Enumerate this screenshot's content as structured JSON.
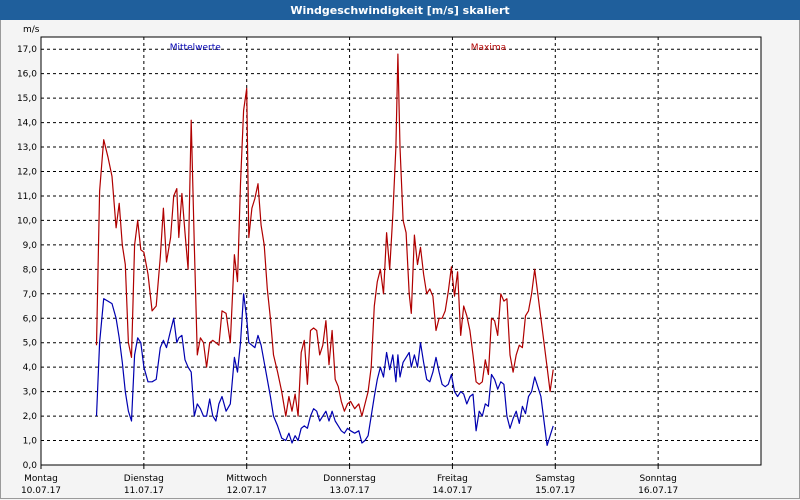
{
  "window": {
    "title": "Windgeschwindigkeit [m/s] skaliert"
  },
  "chart_data": {
    "type": "line",
    "ylabel": "m/s",
    "ylim": [
      0,
      17.5
    ],
    "yticks": [
      "0,0",
      "1,0",
      "2,0",
      "3,0",
      "4,0",
      "5,0",
      "6,0",
      "7,0",
      "8,0",
      "9,0",
      "10,0",
      "11,0",
      "12,0",
      "13,0",
      "14,0",
      "15,0",
      "16,0",
      "17,0"
    ],
    "xlim": [
      0,
      7
    ],
    "x_day_labels": [
      {
        "day": "Montag",
        "date": "10.07.17"
      },
      {
        "day": "Dienstag",
        "date": "11.07.17"
      },
      {
        "day": "Mittwoch",
        "date": "12.07.17"
      },
      {
        "day": "Donnerstag",
        "date": "13.07.17"
      },
      {
        "day": "Freitag",
        "date": "14.07.17"
      },
      {
        "day": "Samstag",
        "date": "15.07.17"
      },
      {
        "day": "Sonntag",
        "date": "16.07.17"
      }
    ],
    "grid": true,
    "series": [
      {
        "name": "Maxima",
        "color": "#b00000",
        "points": [
          [
            0.54,
            4.9
          ],
          [
            0.57,
            11.2
          ],
          [
            0.61,
            13.3
          ],
          [
            0.65,
            12.6
          ],
          [
            0.69,
            11.8
          ],
          [
            0.73,
            9.7
          ],
          [
            0.76,
            10.7
          ],
          [
            0.79,
            9.0
          ],
          [
            0.82,
            8.2
          ],
          [
            0.85,
            5.0
          ],
          [
            0.88,
            4.4
          ],
          [
            0.91,
            9.0
          ],
          [
            0.94,
            10.0
          ],
          [
            0.97,
            8.8
          ],
          [
            1.0,
            8.7
          ],
          [
            1.04,
            7.8
          ],
          [
            1.08,
            6.3
          ],
          [
            1.12,
            6.5
          ],
          [
            1.16,
            8.5
          ],
          [
            1.19,
            10.5
          ],
          [
            1.22,
            8.3
          ],
          [
            1.26,
            9.3
          ],
          [
            1.29,
            11.0
          ],
          [
            1.32,
            11.3
          ],
          [
            1.34,
            9.3
          ],
          [
            1.37,
            11.1
          ],
          [
            1.4,
            9.5
          ],
          [
            1.43,
            8.0
          ],
          [
            1.46,
            14.1
          ],
          [
            1.49,
            9.0
          ],
          [
            1.52,
            4.5
          ],
          [
            1.55,
            5.2
          ],
          [
            1.58,
            5.0
          ],
          [
            1.61,
            4.0
          ],
          [
            1.64,
            5.0
          ],
          [
            1.67,
            5.1
          ],
          [
            1.7,
            5.0
          ],
          [
            1.73,
            4.9
          ],
          [
            1.76,
            6.3
          ],
          [
            1.8,
            6.2
          ],
          [
            1.84,
            5.0
          ],
          [
            1.88,
            8.6
          ],
          [
            1.91,
            7.5
          ],
          [
            1.94,
            11.5
          ],
          [
            1.97,
            14.5
          ],
          [
            2.0,
            15.4
          ],
          [
            2.02,
            9.3
          ],
          [
            2.05,
            10.5
          ],
          [
            2.08,
            10.9
          ],
          [
            2.11,
            11.5
          ],
          [
            2.14,
            9.8
          ],
          [
            2.17,
            9.0
          ],
          [
            2.2,
            7.2
          ],
          [
            2.23,
            6.0
          ],
          [
            2.26,
            4.5
          ],
          [
            2.3,
            3.8
          ],
          [
            2.34,
            3.0
          ],
          [
            2.38,
            2.0
          ],
          [
            2.41,
            2.8
          ],
          [
            2.44,
            2.2
          ],
          [
            2.47,
            2.9
          ],
          [
            2.5,
            2.0
          ],
          [
            2.53,
            4.6
          ],
          [
            2.56,
            5.1
          ],
          [
            2.59,
            3.3
          ],
          [
            2.62,
            5.5
          ],
          [
            2.65,
            5.6
          ],
          [
            2.68,
            5.5
          ],
          [
            2.71,
            4.5
          ],
          [
            2.74,
            4.9
          ],
          [
            2.77,
            5.9
          ],
          [
            2.8,
            4.1
          ],
          [
            2.83,
            5.5
          ],
          [
            2.86,
            3.5
          ],
          [
            2.89,
            3.2
          ],
          [
            2.92,
            2.6
          ],
          [
            2.95,
            2.2
          ],
          [
            2.98,
            2.5
          ],
          [
            3.01,
            2.6
          ],
          [
            3.05,
            2.3
          ],
          [
            3.09,
            2.5
          ],
          [
            3.12,
            2.0
          ],
          [
            3.15,
            2.5
          ],
          [
            3.18,
            3.0
          ],
          [
            3.21,
            4.0
          ],
          [
            3.24,
            6.5
          ],
          [
            3.27,
            7.5
          ],
          [
            3.3,
            8.0
          ],
          [
            3.33,
            7.0
          ],
          [
            3.36,
            9.5
          ],
          [
            3.39,
            8.0
          ],
          [
            3.42,
            10.2
          ],
          [
            3.45,
            13.0
          ],
          [
            3.47,
            16.8
          ],
          [
            3.49,
            13.0
          ],
          [
            3.52,
            10.0
          ],
          [
            3.55,
            9.5
          ],
          [
            3.58,
            7.0
          ],
          [
            3.6,
            6.2
          ],
          [
            3.63,
            9.4
          ],
          [
            3.66,
            8.2
          ],
          [
            3.69,
            8.9
          ],
          [
            3.72,
            7.8
          ],
          [
            3.75,
            7.0
          ],
          [
            3.78,
            7.2
          ],
          [
            3.81,
            6.9
          ],
          [
            3.84,
            5.5
          ],
          [
            3.87,
            6.0
          ],
          [
            3.9,
            6.0
          ],
          [
            3.93,
            6.3
          ],
          [
            3.96,
            7.1
          ],
          [
            3.99,
            8.1
          ],
          [
            4.02,
            6.9
          ],
          [
            4.05,
            7.9
          ],
          [
            4.08,
            5.3
          ],
          [
            4.11,
            6.5
          ],
          [
            4.14,
            6.1
          ],
          [
            4.17,
            5.5
          ],
          [
            4.2,
            4.5
          ],
          [
            4.23,
            3.4
          ],
          [
            4.26,
            3.3
          ],
          [
            4.29,
            3.4
          ],
          [
            4.32,
            4.3
          ],
          [
            4.35,
            3.7
          ],
          [
            4.38,
            6.0
          ],
          [
            4.41,
            5.9
          ],
          [
            4.44,
            5.3
          ],
          [
            4.47,
            7.0
          ],
          [
            4.5,
            6.7
          ],
          [
            4.53,
            6.8
          ],
          [
            4.56,
            4.5
          ],
          [
            4.59,
            3.8
          ],
          [
            4.62,
            4.5
          ],
          [
            4.65,
            4.9
          ],
          [
            4.68,
            4.8
          ],
          [
            4.71,
            6.1
          ],
          [
            4.74,
            6.3
          ],
          [
            4.77,
            7.0
          ],
          [
            4.8,
            8.0
          ],
          [
            4.83,
            7.0
          ],
          [
            4.86,
            6.0
          ],
          [
            4.89,
            5.0
          ],
          [
            4.92,
            4.0
          ],
          [
            4.95,
            3.0
          ],
          [
            4.98,
            3.9
          ]
        ]
      },
      {
        "name": "Mittelwerte",
        "color": "#0000b0",
        "points": [
          [
            0.54,
            2.0
          ],
          [
            0.57,
            5.0
          ],
          [
            0.61,
            6.8
          ],
          [
            0.65,
            6.7
          ],
          [
            0.69,
            6.6
          ],
          [
            0.73,
            6.0
          ],
          [
            0.76,
            5.2
          ],
          [
            0.79,
            4.2
          ],
          [
            0.82,
            3.0
          ],
          [
            0.85,
            2.2
          ],
          [
            0.88,
            1.8
          ],
          [
            0.91,
            4.5
          ],
          [
            0.94,
            5.2
          ],
          [
            0.97,
            5.0
          ],
          [
            1.0,
            4.0
          ],
          [
            1.04,
            3.4
          ],
          [
            1.08,
            3.4
          ],
          [
            1.12,
            3.5
          ],
          [
            1.16,
            4.8
          ],
          [
            1.19,
            5.1
          ],
          [
            1.22,
            4.8
          ],
          [
            1.26,
            5.5
          ],
          [
            1.29,
            6.0
          ],
          [
            1.32,
            5.0
          ],
          [
            1.34,
            5.2
          ],
          [
            1.37,
            5.3
          ],
          [
            1.4,
            4.3
          ],
          [
            1.43,
            4.0
          ],
          [
            1.46,
            3.8
          ],
          [
            1.49,
            2.0
          ],
          [
            1.52,
            2.5
          ],
          [
            1.55,
            2.3
          ],
          [
            1.58,
            2.0
          ],
          [
            1.61,
            2.0
          ],
          [
            1.64,
            2.7
          ],
          [
            1.67,
            2.0
          ],
          [
            1.7,
            1.8
          ],
          [
            1.73,
            2.5
          ],
          [
            1.76,
            2.8
          ],
          [
            1.8,
            2.2
          ],
          [
            1.84,
            2.5
          ],
          [
            1.88,
            4.4
          ],
          [
            1.91,
            3.8
          ],
          [
            1.94,
            5.0
          ],
          [
            1.97,
            7.0
          ],
          [
            2.0,
            6.0
          ],
          [
            2.02,
            5.0
          ],
          [
            2.05,
            4.9
          ],
          [
            2.08,
            4.8
          ],
          [
            2.11,
            5.3
          ],
          [
            2.14,
            4.9
          ],
          [
            2.17,
            4.2
          ],
          [
            2.2,
            3.5
          ],
          [
            2.23,
            2.8
          ],
          [
            2.26,
            2.0
          ],
          [
            2.3,
            1.6
          ],
          [
            2.34,
            1.1
          ],
          [
            2.38,
            1.0
          ],
          [
            2.41,
            1.3
          ],
          [
            2.44,
            0.9
          ],
          [
            2.47,
            1.2
          ],
          [
            2.5,
            1.0
          ],
          [
            2.53,
            1.5
          ],
          [
            2.56,
            1.6
          ],
          [
            2.59,
            1.5
          ],
          [
            2.62,
            2.0
          ],
          [
            2.65,
            2.3
          ],
          [
            2.68,
            2.2
          ],
          [
            2.71,
            1.8
          ],
          [
            2.74,
            2.0
          ],
          [
            2.77,
            2.2
          ],
          [
            2.8,
            1.8
          ],
          [
            2.83,
            2.2
          ],
          [
            2.86,
            1.8
          ],
          [
            2.89,
            1.6
          ],
          [
            2.92,
            1.4
          ],
          [
            2.95,
            1.3
          ],
          [
            2.98,
            1.5
          ],
          [
            3.01,
            1.4
          ],
          [
            3.05,
            1.3
          ],
          [
            3.09,
            1.4
          ],
          [
            3.12,
            0.9
          ],
          [
            3.15,
            1.0
          ],
          [
            3.18,
            1.2
          ],
          [
            3.21,
            2.0
          ],
          [
            3.24,
            2.8
          ],
          [
            3.27,
            3.5
          ],
          [
            3.3,
            4.0
          ],
          [
            3.33,
            3.6
          ],
          [
            3.36,
            4.6
          ],
          [
            3.39,
            3.9
          ],
          [
            3.42,
            4.5
          ],
          [
            3.45,
            3.4
          ],
          [
            3.47,
            4.5
          ],
          [
            3.49,
            3.6
          ],
          [
            3.52,
            4.2
          ],
          [
            3.55,
            4.4
          ],
          [
            3.58,
            4.6
          ],
          [
            3.6,
            4.0
          ],
          [
            3.63,
            4.5
          ],
          [
            3.66,
            4.0
          ],
          [
            3.69,
            5.0
          ],
          [
            3.72,
            4.2
          ],
          [
            3.75,
            3.5
          ],
          [
            3.78,
            3.4
          ],
          [
            3.81,
            3.8
          ],
          [
            3.84,
            4.4
          ],
          [
            3.87,
            3.8
          ],
          [
            3.9,
            3.3
          ],
          [
            3.93,
            3.2
          ],
          [
            3.96,
            3.3
          ],
          [
            3.99,
            3.7
          ],
          [
            4.02,
            3.0
          ],
          [
            4.05,
            2.8
          ],
          [
            4.08,
            3.0
          ],
          [
            4.11,
            2.9
          ],
          [
            4.14,
            2.5
          ],
          [
            4.17,
            2.8
          ],
          [
            4.2,
            2.9
          ],
          [
            4.23,
            1.4
          ],
          [
            4.26,
            2.2
          ],
          [
            4.29,
            2.0
          ],
          [
            4.32,
            2.5
          ],
          [
            4.35,
            2.4
          ],
          [
            4.38,
            3.7
          ],
          [
            4.41,
            3.5
          ],
          [
            4.44,
            3.1
          ],
          [
            4.47,
            3.4
          ],
          [
            4.5,
            3.3
          ],
          [
            4.53,
            2.0
          ],
          [
            4.56,
            1.5
          ],
          [
            4.59,
            1.9
          ],
          [
            4.62,
            2.2
          ],
          [
            4.65,
            1.7
          ],
          [
            4.68,
            2.4
          ],
          [
            4.71,
            2.1
          ],
          [
            4.74,
            2.8
          ],
          [
            4.77,
            3.0
          ],
          [
            4.8,
            3.6
          ],
          [
            4.83,
            3.2
          ],
          [
            4.86,
            2.8
          ],
          [
            4.89,
            1.8
          ],
          [
            4.92,
            0.8
          ],
          [
            4.95,
            1.2
          ],
          [
            4.98,
            1.6
          ]
        ]
      }
    ]
  }
}
